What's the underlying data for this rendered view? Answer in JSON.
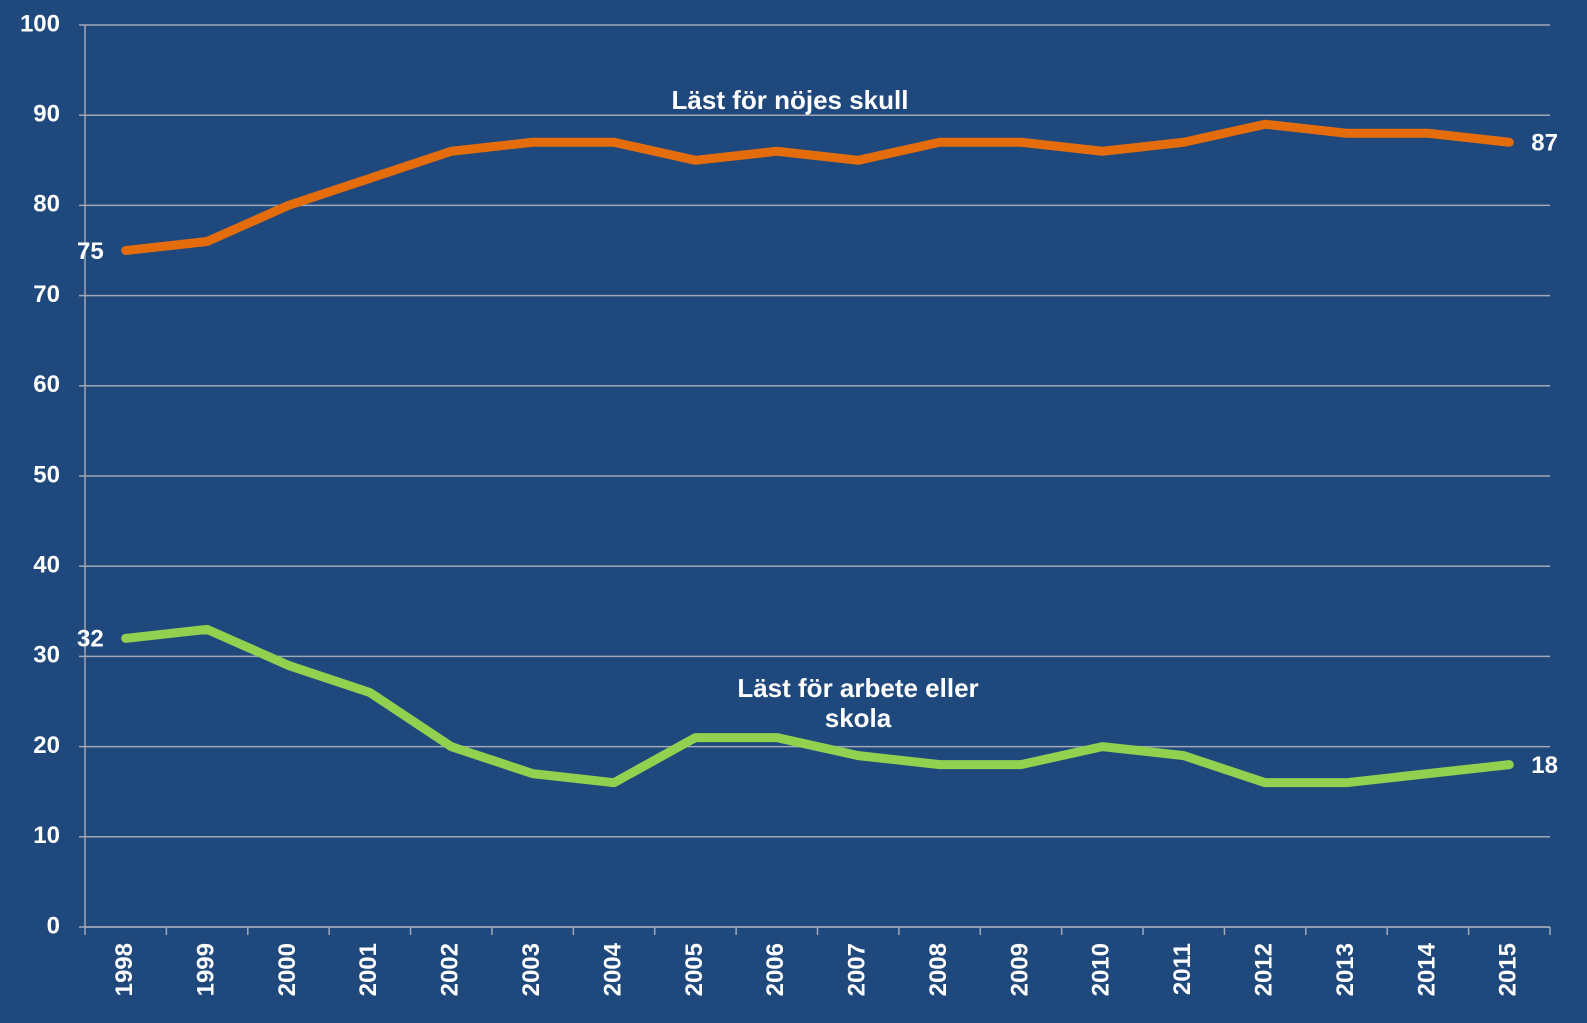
{
  "chart_data": {
    "type": "line",
    "categories": [
      "1998",
      "1999",
      "2000",
      "2001",
      "2002",
      "2003",
      "2004",
      "2005",
      "2006",
      "2007",
      "2008",
      "2009",
      "2010",
      "2011",
      "2012",
      "2013",
      "2014",
      "2015"
    ],
    "series": [
      {
        "name": "Läst för nöjes skull",
        "color": "#e46c0a",
        "values": [
          75,
          76,
          80,
          83,
          86,
          87,
          87,
          85,
          86,
          85,
          87,
          87,
          86,
          87,
          89,
          88,
          88,
          87
        ]
      },
      {
        "name": "Läst för arbete eller skola",
        "color": "#92d050",
        "values": [
          32,
          33,
          29,
          26,
          20,
          17,
          16,
          21,
          21,
          19,
          18,
          18,
          20,
          19,
          16,
          16,
          17,
          18
        ]
      }
    ],
    "ylim": [
      0,
      100
    ],
    "yticks": [
      0,
      10,
      20,
      30,
      40,
      50,
      60,
      70,
      80,
      90,
      100
    ],
    "grid": true,
    "background": "#1f497d"
  }
}
